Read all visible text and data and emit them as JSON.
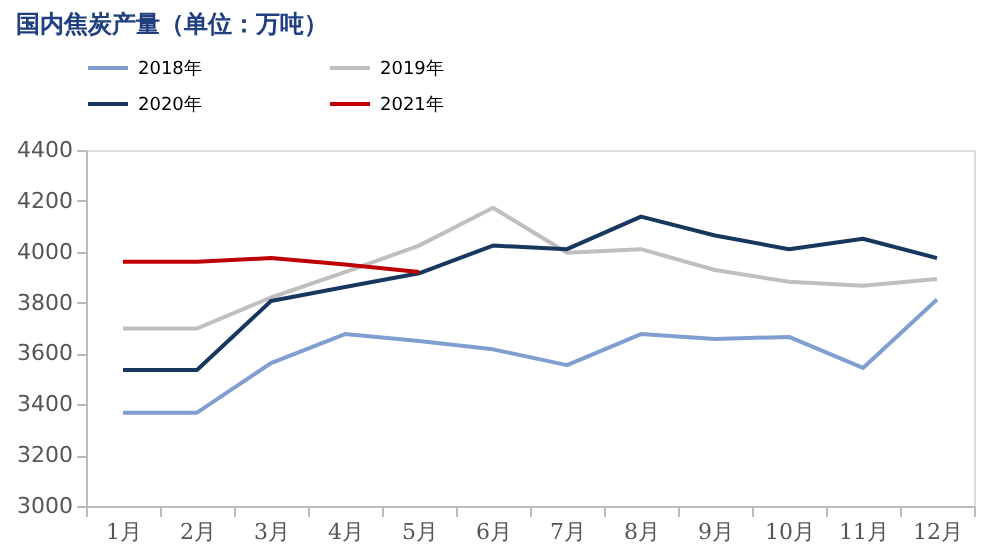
{
  "chart_data": {
    "type": "line",
    "title": "国内焦炭产量（单位：万吨）",
    "categories": [
      "1月",
      "2月",
      "3月",
      "4月",
      "5月",
      "6月",
      "7月",
      "8月",
      "9月",
      "10月",
      "11月",
      "12月"
    ],
    "series": [
      {
        "name": "2018年",
        "color": "#809fd0",
        "values": [
          3367,
          3367,
          3562,
          3676,
          3649,
          3616,
          3554,
          3676,
          3657,
          3665,
          3543,
          3812
        ]
      },
      {
        "name": "2019年",
        "color": "#bfbfbf",
        "values": [
          3698,
          3698,
          3820,
          3920,
          4024,
          4173,
          3996,
          4010,
          3928,
          3882,
          3866,
          3893
        ]
      },
      {
        "name": "2020年",
        "color": "#17375e",
        "values": [
          3535,
          3535,
          3806,
          3861,
          3915,
          4024,
          4010,
          4138,
          4064,
          4010,
          4051,
          3975
        ]
      },
      {
        "name": "2021年",
        "color": "#c00000",
        "values": [
          3961,
          3961,
          3975,
          3950,
          3920,
          null,
          null,
          null,
          null,
          null,
          null,
          null
        ]
      }
    ],
    "ylim": [
      3000,
      4400
    ],
    "yticks": [
      3000,
      3200,
      3400,
      3600,
      3800,
      4000,
      4200,
      4400
    ],
    "grid": false,
    "legend": "top",
    "marker": "none",
    "line_style": "solid"
  }
}
